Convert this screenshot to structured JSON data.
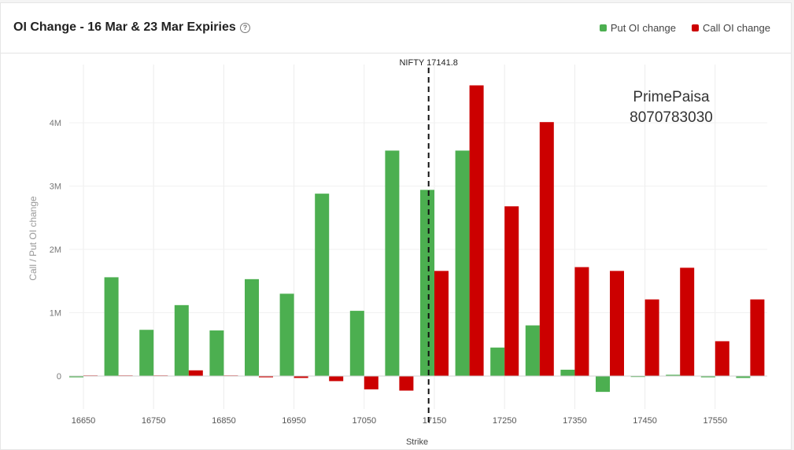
{
  "header": {
    "title": "OI Change - 16 Mar & 23 Mar Expiries",
    "help_icon": "question-circle-icon"
  },
  "legend": [
    {
      "label": "Put OI change",
      "color": "#4caf50"
    },
    {
      "label": "Call OI change",
      "color": "#cc0000"
    }
  ],
  "watermark": {
    "line1": "PrimePaisa",
    "line2": "8070783030"
  },
  "chart_data": {
    "type": "bar",
    "xlabel": "Strike",
    "ylabel": "Call / Put OI change",
    "x_tick_labels": [
      "16650",
      "16750",
      "16850",
      "16950",
      "17050",
      "17150",
      "17250",
      "17350",
      "17450",
      "17550"
    ],
    "y_tick_labels": [
      "0",
      "1M",
      "2M",
      "3M",
      "4M"
    ],
    "ylim": [
      -600000,
      4800000
    ],
    "grid": true,
    "legend_position": "top-right",
    "categories": [
      16650,
      16700,
      16750,
      16800,
      16850,
      16900,
      16950,
      17000,
      17050,
      17100,
      17150,
      17200,
      17250,
      17300,
      17350,
      17400,
      17450,
      17500,
      17550,
      17600
    ],
    "series": [
      {
        "name": "Put OI change",
        "color": "#4caf50",
        "values": [
          -20000,
          1560000,
          730000,
          1120000,
          720000,
          1530000,
          1300000,
          2880000,
          1030000,
          3560000,
          2940000,
          3560000,
          450000,
          800000,
          100000,
          -250000,
          -10000,
          20000,
          -20000,
          -30000
        ]
      },
      {
        "name": "Call OI change",
        "color": "#cc0000",
        "values": [
          10000,
          10000,
          10000,
          90000,
          10000,
          -20000,
          -30000,
          -80000,
          -210000,
          -230000,
          1660000,
          4590000,
          2680000,
          4010000,
          1720000,
          1660000,
          1210000,
          1710000,
          550000,
          1210000
        ]
      }
    ],
    "spot": {
      "label": "NIFTY 17141.8",
      "value": 17141.8
    }
  }
}
